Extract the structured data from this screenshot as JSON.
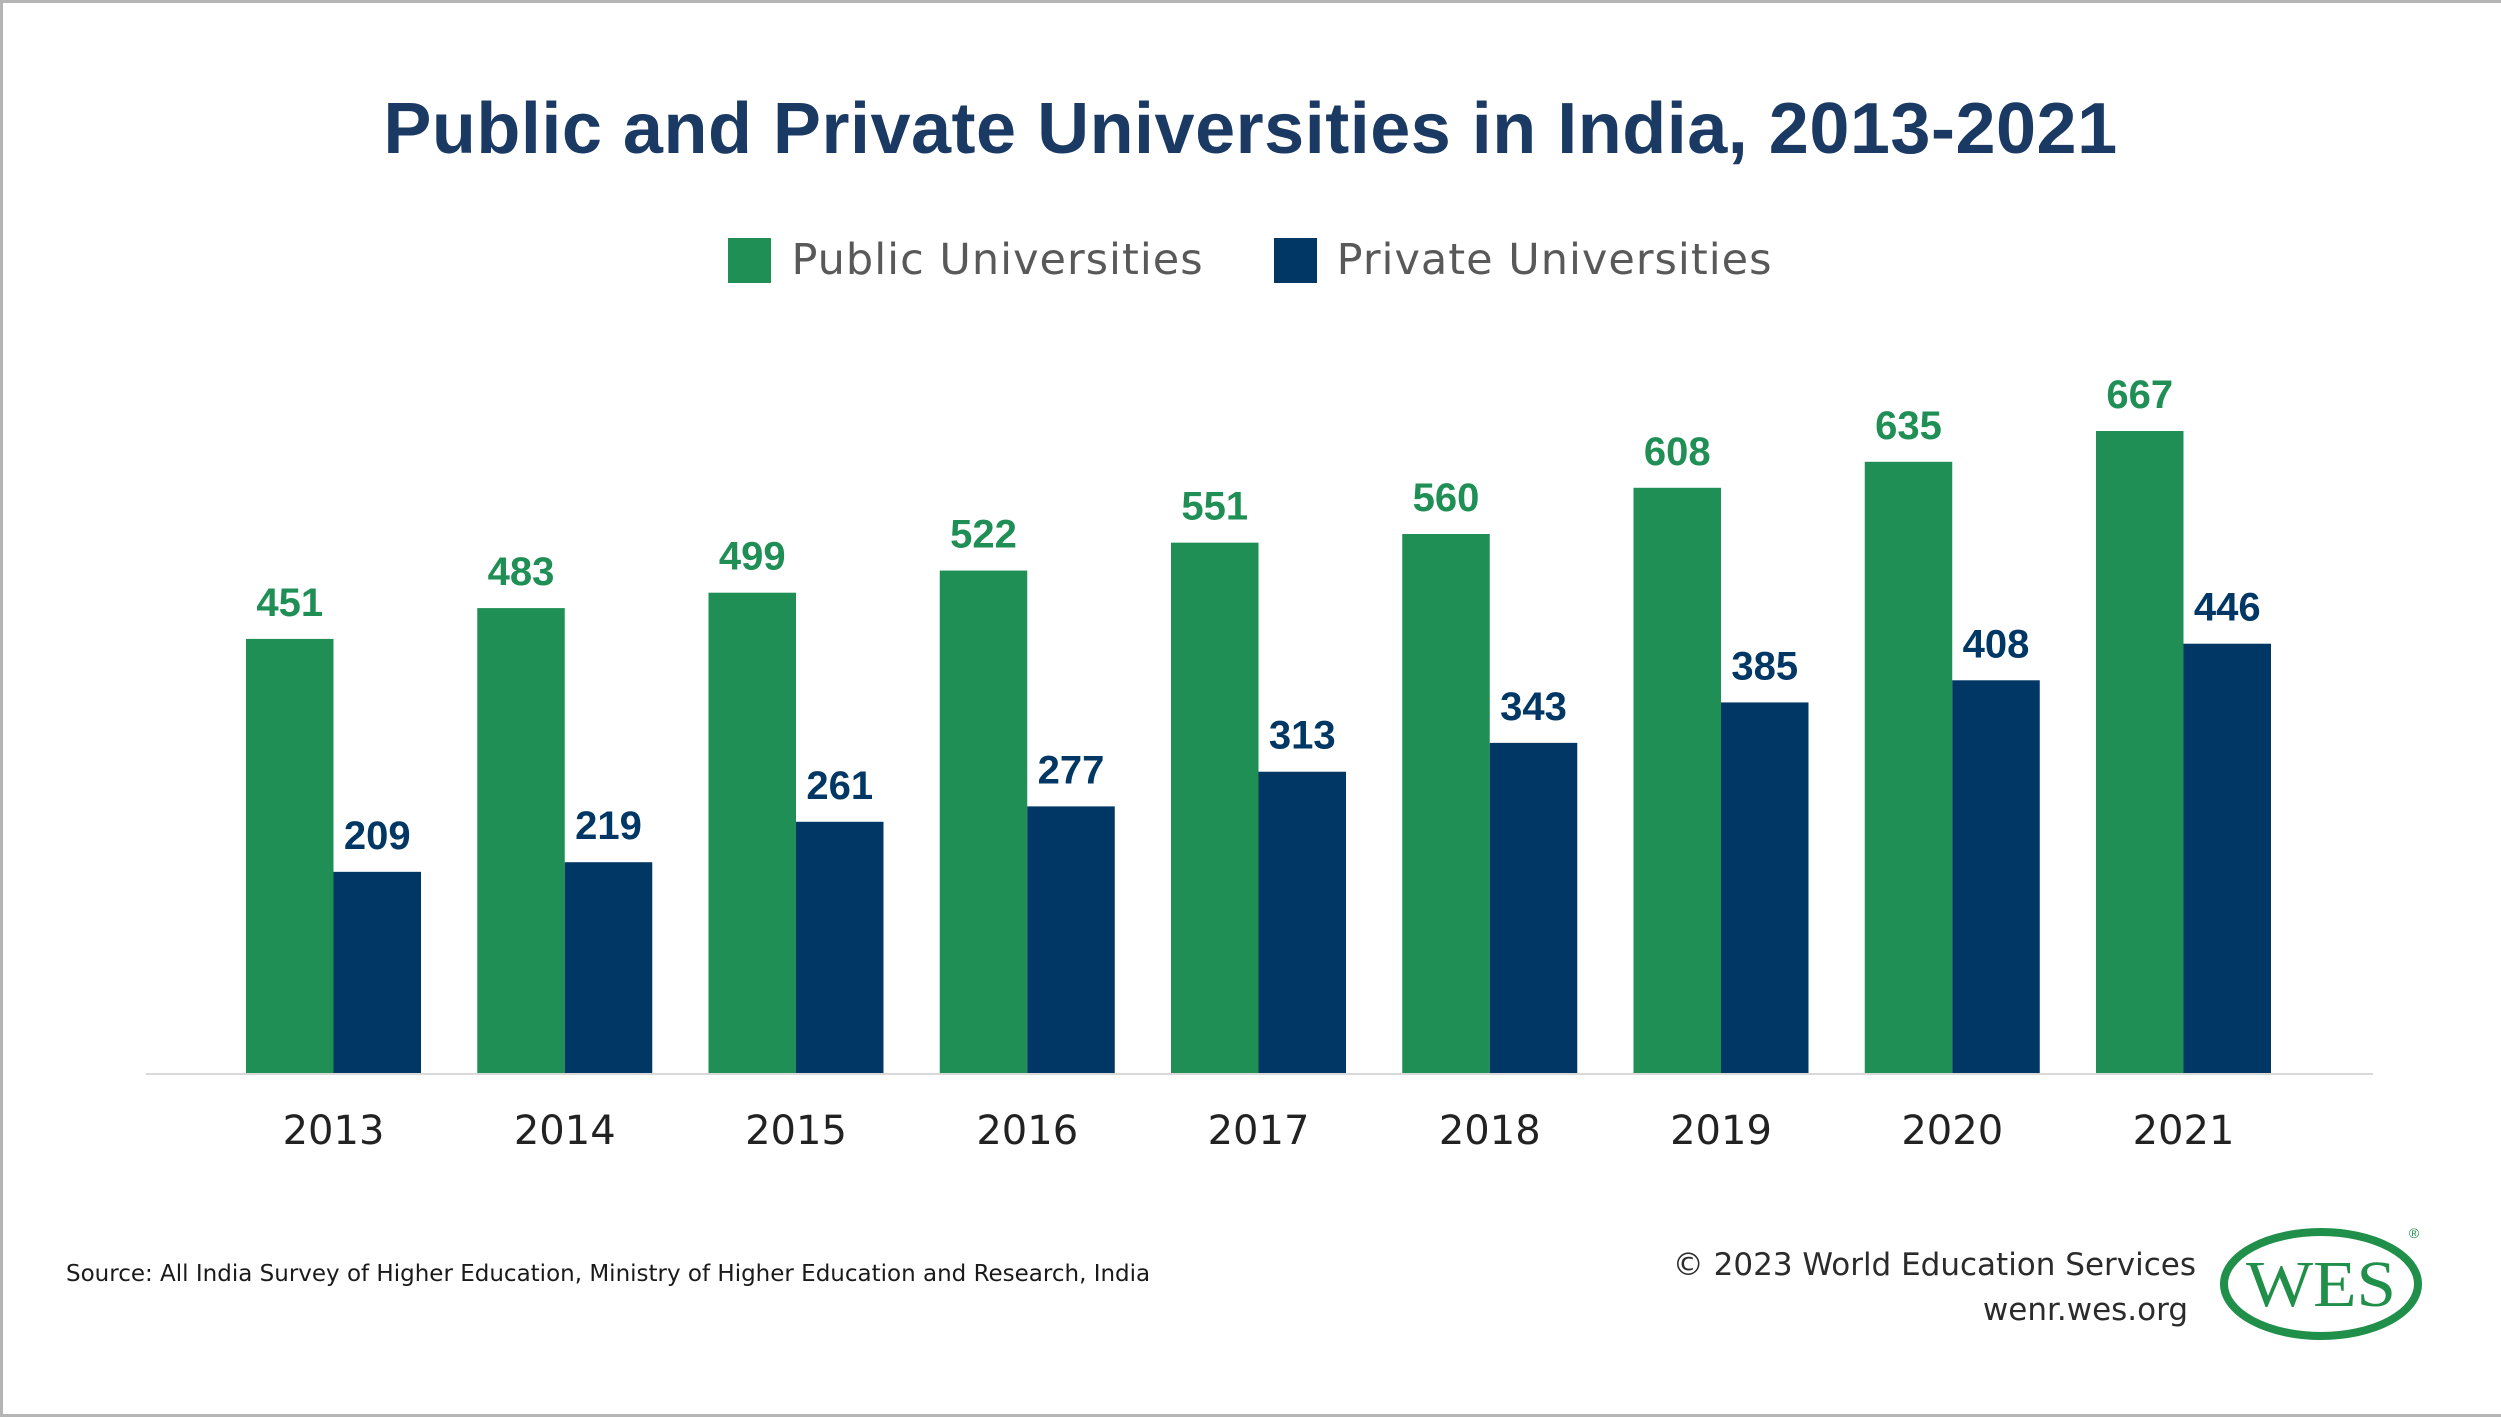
{
  "colors": {
    "public": "#1f8f55",
    "private": "#003764",
    "title": "#1b3a63",
    "axis": "#d9d9d9",
    "logo": "#1f8f4a"
  },
  "header": {
    "title": "Public and Private Universities in India, 2013-2021"
  },
  "legend": {
    "items": [
      {
        "label": "Public Universities",
        "color": "#1f8f55"
      },
      {
        "label": "Private Universities",
        "color": "#003764"
      }
    ]
  },
  "footer": {
    "source": "Source: All India Survey of Higher Education, Ministry of Higher Education and Research, India",
    "copyright": "© 2023 World Education Services",
    "url": "wenr.wes.org",
    "logo_text": "WES",
    "logo_mark": "®"
  },
  "chart_data": {
    "type": "bar",
    "title": "Public and Private Universities in India, 2013-2021",
    "xlabel": "",
    "ylabel": "",
    "categories": [
      "2013",
      "2014",
      "2015",
      "2016",
      "2017",
      "2018",
      "2019",
      "2020",
      "2021"
    ],
    "series": [
      {
        "name": "Public Universities",
        "color": "#1f8f55",
        "values": [
          451,
          483,
          499,
          522,
          551,
          560,
          608,
          635,
          667
        ]
      },
      {
        "name": "Private Universities",
        "color": "#003764",
        "values": [
          209,
          219,
          261,
          277,
          313,
          343,
          385,
          408,
          446
        ]
      }
    ],
    "ylim": [
      0,
      700
    ],
    "grid": false,
    "y_axis_visible": false,
    "data_labels": true,
    "legend_position": "top-center"
  }
}
